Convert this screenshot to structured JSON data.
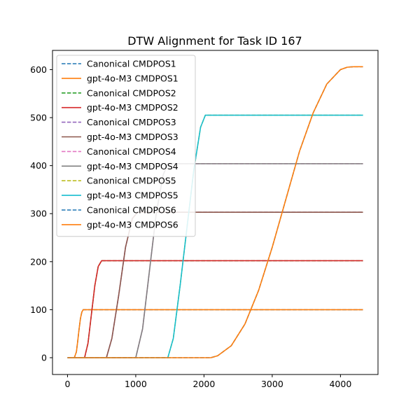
{
  "chart_data": {
    "type": "line",
    "title": "DTW Alignment for Task ID 167",
    "xlabel": "",
    "ylabel": "",
    "xlim": [
      -220,
      4550
    ],
    "ylim": [
      -35,
      640
    ],
    "xticks": [
      0,
      1000,
      2000,
      3000,
      4000
    ],
    "yticks": [
      0,
      100,
      200,
      300,
      400,
      500,
      600
    ],
    "grid": false,
    "legend_position": "top-left",
    "series": [
      {
        "name": "Canonical CMDPOS1",
        "style": "dashed",
        "color": "#1f77b4",
        "x": [
          0,
          100,
          130,
          150,
          170,
          190,
          210,
          230,
          4330
        ],
        "y": [
          0,
          0,
          12,
          35,
          60,
          82,
          95,
          100,
          100
        ]
      },
      {
        "name": "gpt-4o-M3 CMDPOS1",
        "style": "solid",
        "color": "#ff7f0e",
        "x": [
          0,
          100,
          130,
          150,
          170,
          190,
          210,
          230,
          4330
        ],
        "y": [
          0,
          0,
          12,
          35,
          60,
          82,
          95,
          100,
          100
        ]
      },
      {
        "name": "Canonical CMDPOS2",
        "style": "dashed",
        "color": "#2ca02c",
        "x": [
          0,
          250,
          300,
          350,
          400,
          450,
          500,
          4330
        ],
        "y": [
          0,
          0,
          30,
          90,
          150,
          190,
          202,
          202
        ]
      },
      {
        "name": "gpt-4o-M3 CMDPOS2",
        "style": "solid",
        "color": "#d62728",
        "x": [
          0,
          250,
          300,
          350,
          400,
          450,
          500,
          4330
        ],
        "y": [
          0,
          0,
          30,
          90,
          150,
          190,
          202,
          202
        ]
      },
      {
        "name": "Canonical CMDPOS3",
        "style": "dashed",
        "color": "#9467bd",
        "x": [
          0,
          570,
          650,
          750,
          850,
          950,
          1030,
          4330
        ],
        "y": [
          0,
          0,
          40,
          130,
          230,
          290,
          303,
          303
        ]
      },
      {
        "name": "gpt-4o-M3 CMDPOS3",
        "style": "solid",
        "color": "#8c564b",
        "x": [
          0,
          570,
          650,
          750,
          850,
          950,
          1030,
          4330
        ],
        "y": [
          0,
          0,
          40,
          130,
          230,
          290,
          303,
          303
        ]
      },
      {
        "name": "Canonical CMDPOS4",
        "style": "dashed",
        "color": "#e377c2",
        "x": [
          0,
          1000,
          1100,
          1200,
          1300,
          1400,
          1470,
          4330
        ],
        "y": [
          0,
          0,
          60,
          180,
          300,
          380,
          404,
          404
        ]
      },
      {
        "name": "gpt-4o-M3 CMDPOS4",
        "style": "solid",
        "color": "#7f7f7f",
        "x": [
          0,
          1000,
          1100,
          1200,
          1300,
          1400,
          1470,
          4330
        ],
        "y": [
          0,
          0,
          60,
          180,
          300,
          380,
          404,
          404
        ]
      },
      {
        "name": "Canonical CMDPOS5",
        "style": "dashed",
        "color": "#bcbd22",
        "x": [
          0,
          1470,
          1550,
          1650,
          1750,
          1850,
          1950,
          2020,
          4330
        ],
        "y": [
          0,
          0,
          40,
          150,
          270,
          390,
          480,
          505,
          505
        ]
      },
      {
        "name": "gpt-4o-M3 CMDPOS5",
        "style": "solid",
        "color": "#17becf",
        "x": [
          0,
          1470,
          1550,
          1650,
          1750,
          1850,
          1950,
          2020,
          4330
        ],
        "y": [
          0,
          0,
          40,
          150,
          270,
          390,
          480,
          505,
          505
        ]
      },
      {
        "name": "Canonical CMDPOS6",
        "style": "dashed",
        "color": "#1f77b4",
        "x": [
          0,
          2100,
          2200,
          2400,
          2600,
          2800,
          3000,
          3200,
          3400,
          3600,
          3800,
          4000,
          4100,
          4200,
          4330
        ],
        "y": [
          0,
          0,
          4,
          25,
          70,
          140,
          230,
          330,
          430,
          510,
          570,
          600,
          605,
          606,
          606
        ]
      },
      {
        "name": "gpt-4o-M3 CMDPOS6",
        "style": "solid",
        "color": "#ff7f0e",
        "x": [
          0,
          2100,
          2200,
          2400,
          2600,
          2800,
          3000,
          3200,
          3400,
          3600,
          3800,
          4000,
          4100,
          4200,
          4330
        ],
        "y": [
          0,
          0,
          4,
          25,
          70,
          140,
          230,
          330,
          430,
          510,
          570,
          600,
          605,
          606,
          606
        ]
      }
    ]
  }
}
